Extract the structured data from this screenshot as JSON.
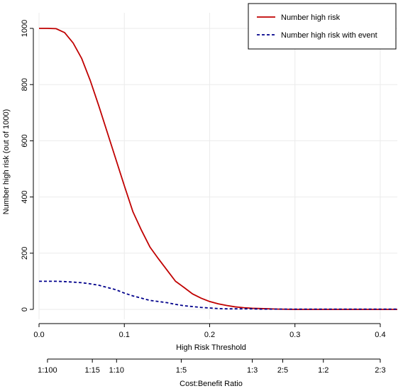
{
  "chart_data": {
    "type": "line",
    "xlabel": "High Risk Threshold",
    "ylabel": "Number high risk (out of 1000)",
    "xlim": [
      0,
      0.42
    ],
    "ylim": [
      0,
      1000
    ],
    "grid": true,
    "legend_placement": "top-right",
    "x_ticks": [
      0.0,
      0.1,
      0.2,
      0.3,
      0.4
    ],
    "x_tick_labels": [
      "0.0",
      "0.1",
      "0.2",
      "0.3",
      "0.4"
    ],
    "y_ticks": [
      0,
      200,
      400,
      600,
      800,
      1000
    ],
    "y_tick_labels": [
      "0",
      "200",
      "400",
      "600",
      "800",
      "1000"
    ],
    "secondary_axis": {
      "label": "Cost:Benefit Ratio",
      "ticks": [
        0.0099,
        0.0625,
        0.0909,
        0.1667,
        0.25,
        0.2857,
        0.3333,
        0.4
      ],
      "tick_labels": [
        "1:100",
        "1:15",
        "1:10",
        "1:5",
        "1:3",
        "2:5",
        "1:2",
        "2:3"
      ]
    },
    "series": [
      {
        "name": "Number high risk",
        "color": "#c00000",
        "style": "solid",
        "x": [
          0.0,
          0.01,
          0.02,
          0.03,
          0.04,
          0.05,
          0.06,
          0.07,
          0.08,
          0.09,
          0.1,
          0.11,
          0.12,
          0.13,
          0.14,
          0.15,
          0.16,
          0.17,
          0.18,
          0.19,
          0.2,
          0.21,
          0.22,
          0.23,
          0.24,
          0.25,
          0.26,
          0.27,
          0.28,
          0.3,
          0.32,
          0.34,
          0.36,
          0.38,
          0.4,
          0.42
        ],
        "y": [
          1000,
          1000,
          999,
          985,
          948,
          893,
          815,
          725,
          630,
          535,
          440,
          348,
          282,
          222,
          180,
          140,
          100,
          78,
          55,
          40,
          28,
          20,
          14,
          9,
          6,
          4,
          3,
          2,
          1,
          0,
          0,
          0,
          0,
          0,
          0,
          0
        ]
      },
      {
        "name": "Number high risk with event",
        "color": "#00008b",
        "style": "dashed",
        "x": [
          0.0,
          0.01,
          0.02,
          0.03,
          0.04,
          0.05,
          0.06,
          0.07,
          0.08,
          0.09,
          0.1,
          0.11,
          0.12,
          0.13,
          0.14,
          0.15,
          0.16,
          0.17,
          0.18,
          0.19,
          0.2,
          0.21,
          0.22,
          0.23,
          0.24,
          0.25,
          0.26,
          0.27,
          0.28,
          0.3,
          0.32,
          0.34,
          0.36,
          0.38,
          0.4,
          0.42
        ],
        "y": [
          100,
          100,
          100,
          99,
          97,
          95,
          91,
          86,
          78,
          70,
          58,
          48,
          40,
          32,
          28,
          24,
          18,
          13,
          10,
          7,
          5,
          3,
          2,
          2,
          2,
          2,
          1,
          1,
          1,
          1,
          1,
          1,
          1,
          1,
          1,
          1
        ]
      }
    ]
  }
}
